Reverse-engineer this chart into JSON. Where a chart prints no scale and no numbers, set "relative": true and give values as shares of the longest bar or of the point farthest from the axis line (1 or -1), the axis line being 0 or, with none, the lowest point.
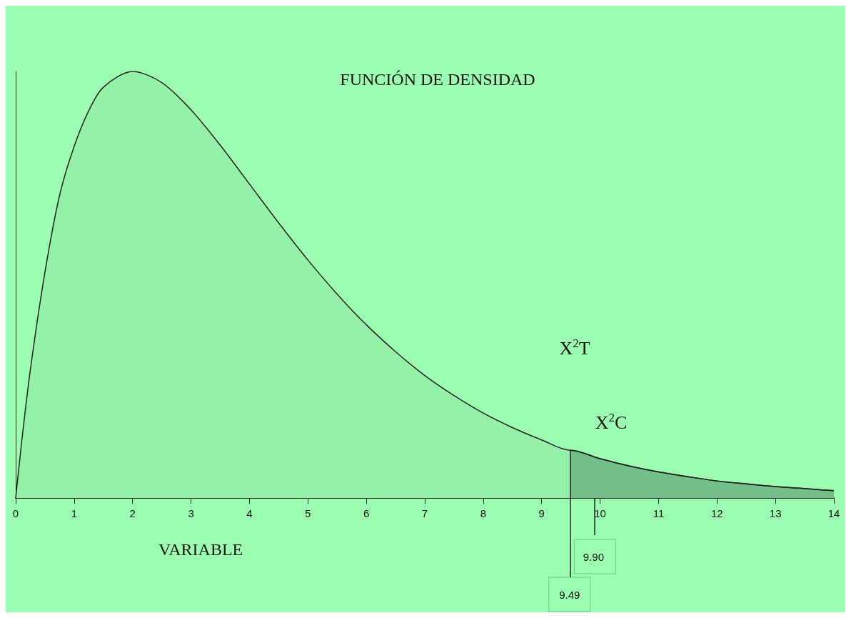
{
  "chart_data": {
    "type": "area",
    "title": "FUNCIÓN DE DENSIDAD",
    "xlabel": "VARIABLE",
    "relative": true,
    "marker": "none",
    "xlim": [
      0,
      14
    ],
    "xticks": [
      0,
      1,
      2,
      3,
      4,
      5,
      6,
      7,
      8,
      9,
      10,
      11,
      12,
      13,
      14
    ],
    "series": [
      {
        "color": "#93f2a8",
        "x": [
          0,
          0.1,
          0.25,
          0.5,
          0.75,
          1,
          1.25,
          1.5,
          2,
          2.5,
          3,
          3.5,
          4,
          4.5,
          5,
          5.5,
          6,
          6.5,
          7,
          7.5,
          8,
          8.5,
          9,
          9.49,
          9.5,
          10,
          10.5,
          11,
          11.5,
          12,
          12.5,
          13,
          13.5,
          14
        ],
        "values": [
          0,
          0.129,
          0.3,
          0.529,
          0.709,
          0.824,
          0.908,
          0.963,
          1,
          0.974,
          0.91,
          0.827,
          0.736,
          0.645,
          0.558,
          0.478,
          0.406,
          0.343,
          0.287,
          0.24,
          0.199,
          0.165,
          0.136,
          0.112,
          0.112,
          0.092,
          0.075,
          0.061,
          0.05,
          0.04,
          0.033,
          0.027,
          0.022,
          0.017
        ]
      },
      {
        "color": "#72bf88",
        "x": [
          9.49,
          9.5,
          10,
          10.5,
          11,
          11.5,
          12,
          12.5,
          13,
          13.5,
          14
        ],
        "values": [
          0.112,
          0.112,
          0.092,
          0.075,
          0.061,
          0.05,
          0.04,
          0.033,
          0.027,
          0.022,
          0.017
        ]
      }
    ],
    "ref_lines": [
      {
        "axis": "x",
        "value": 9.49,
        "label": "9.49"
      },
      {
        "axis": "x",
        "value": 9.9,
        "label": "9.90"
      }
    ],
    "annotations": [
      "X$^{2}$T",
      "X$^{2}$C"
    ]
  }
}
